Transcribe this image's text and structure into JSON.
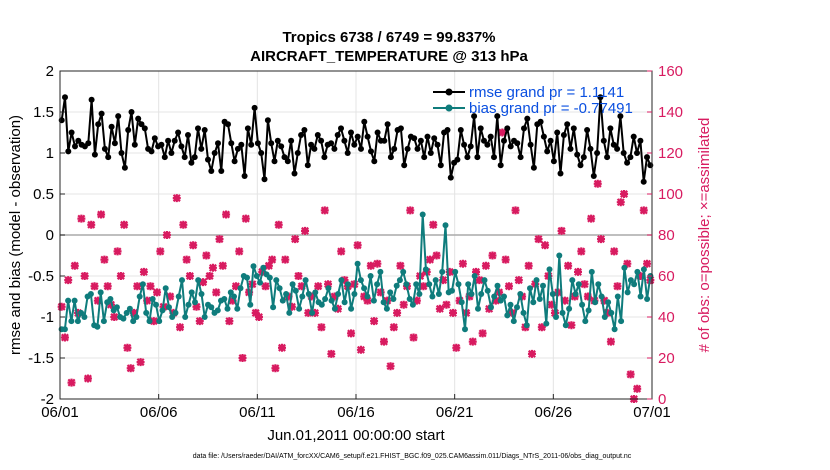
{
  "chart_data": {
    "type": "line",
    "title": "Tropics 6738 / 6749 = 99.837%",
    "subtitle": "AIRCRAFT_TEMPERATURE @ 313 hPa",
    "xlabel": "Jun.01,2011 00:00:00 start",
    "ylabel_left": "rmse and bias (model - observation)",
    "ylabel_right": "# of obs: o=possible; ×=assimilated",
    "footnote": "data file: /Users/raeder/DAI/ATM_forcXX/CAM6_setup/f.e21.FHIST_BGC.f09_025.CAM6assim.011/Diags_NTrS_2011-06/obs_diag_output.nc",
    "x_tick_labels": [
      "06/01",
      "06/06",
      "06/11",
      "06/16",
      "06/21",
      "06/26",
      "07/01"
    ],
    "x_range_days": [
      0,
      30
    ],
    "ylim_left": [
      -2,
      2
    ],
    "yticks_left": [
      "-2",
      "-1.5",
      "-1",
      "-0.5",
      "0",
      "0.5",
      "1",
      "1.5",
      "2"
    ],
    "ylim_right": [
      0,
      160
    ],
    "yticks_right": [
      "0",
      "20",
      "40",
      "60",
      "80",
      "100",
      "120",
      "140",
      "160"
    ],
    "grid": true,
    "legend_position": "top-right",
    "colors": {
      "rmse": "#000000",
      "bias": "#0f7c7c",
      "obs": "#d81b60",
      "zero_line": "#aaaaaa",
      "legend_text": "#0a4fe0",
      "right_axis": "#d81b60"
    },
    "series": [
      {
        "name": "rmse grand pr = 1.1141",
        "axis": "left",
        "values": [
          1.4,
          1.68,
          1.02,
          1.25,
          1.08,
          1.15,
          1.1,
          1.08,
          1.12,
          1.65,
          0.98,
          1.35,
          1.48,
          1.05,
          0.95,
          1.32,
          1.12,
          1.45,
          1.0,
          0.82,
          1.28,
          1.5,
          1.1,
          1.42,
          1.35,
          1.3,
          1.05,
          1.02,
          1.18,
          1.08,
          1.1,
          0.95,
          1.15,
          1.0,
          1.15,
          1.25,
          1.08,
          0.95,
          1.22,
          0.88,
          0.95,
          1.3,
          1.05,
          1.28,
          0.92,
          0.78,
          1.0,
          1.12,
          0.78,
          1.38,
          1.35,
          1.12,
          0.9,
          1.05,
          1.1,
          0.72,
          1.3,
          1.1,
          1.55,
          1.12,
          1.0,
          0.68,
          1.4,
          1.12,
          0.9,
          1.15,
          1.08,
          0.95,
          0.9,
          1.15,
          0.75,
          1.0,
          1.22,
          1.28,
          0.85,
          1.1,
          1.05,
          1.22,
          1.15,
          0.95,
          1.1,
          1.12,
          1.05,
          1.22,
          1.3,
          1.15,
          1.0,
          1.25,
          1.1,
          1.2,
          1.05,
          1.38,
          1.2,
          1.02,
          0.9,
          1.25,
          1.15,
          1.15,
          1.35,
          0.95,
          1.05,
          1.28,
          1.3,
          0.85,
          1.05,
          1.2,
          1.18,
          1.05,
          1.15,
          0.95,
          1.2,
          1.0,
          1.18,
          1.1,
          0.85,
          1.25,
          1.28,
          0.7,
          0.88,
          0.92,
          1.28,
          1.1,
          0.95,
          1.08,
          1.45,
          0.95,
          1.3,
          1.15,
          1.1,
          1.2,
          0.95,
          1.45,
          0.85,
          1.15,
          1.3,
          1.08,
          1.15,
          1.12,
          0.95,
          1.3,
          1.42,
          1.1,
          0.82,
          1.35,
          1.38,
          1.2,
          1.02,
          1.15,
          0.9,
          1.25,
          0.75,
          1.22,
          1.35,
          1.05,
          1.3,
          0.98,
          0.85,
          0.95,
          1.28,
          1.05,
          0.72,
          1.0,
          1.68,
          1.15,
          0.95,
          1.3,
          1.1,
          1.05,
          1.45,
          1.0,
          0.88,
          0.95,
          1.2,
          1.0,
          1.15,
          0.65,
          0.95,
          0.85
        ]
      },
      {
        "name": "bias grand pr = -0.77491",
        "axis": "left",
        "values": [
          -1.15,
          -1.15,
          -0.8,
          -1.05,
          -0.8,
          -1.05,
          -0.95,
          -1.0,
          -0.75,
          -0.72,
          -1.1,
          -1.12,
          -0.7,
          -1.05,
          -0.82,
          -0.78,
          -0.92,
          -0.88,
          -1.0,
          -1.02,
          -0.95,
          -0.9,
          -1.05,
          -1.0,
          -0.75,
          -0.6,
          -0.95,
          -1.05,
          -0.78,
          -0.85,
          -1.05,
          -0.92,
          -0.65,
          -0.88,
          -1.0,
          -0.95,
          -0.75,
          -0.55,
          -1.0,
          -0.85,
          -0.7,
          -0.82,
          -0.55,
          -0.72,
          -1.0,
          -0.85,
          -0.88,
          -0.95,
          -0.92,
          -0.8,
          -0.78,
          -0.9,
          -0.7,
          -0.75,
          -0.9,
          -0.65,
          -0.5,
          -0.52,
          -0.85,
          -0.38,
          -0.5,
          -0.58,
          -0.4,
          -0.48,
          -0.52,
          -0.88,
          -0.55,
          -0.65,
          -0.8,
          -0.72,
          -0.95,
          -0.6,
          -0.68,
          -0.9,
          -0.75,
          -0.55,
          -0.72,
          -0.95,
          -0.7,
          -0.82,
          -0.85,
          -0.78,
          -0.65,
          -0.8,
          -0.9,
          -0.72,
          -0.55,
          -0.82,
          -0.6,
          -0.9,
          -0.72,
          -0.35,
          -0.55,
          -0.65,
          -0.75,
          -0.5,
          -0.8,
          -0.6,
          -0.45,
          -0.82,
          -0.9,
          -0.7,
          -0.78,
          -0.62,
          -0.55,
          -0.45,
          -0.6,
          -0.78,
          -0.85,
          -0.6,
          -0.72,
          0.25,
          -0.42,
          -0.6,
          -0.75,
          -0.55,
          -0.72,
          -0.45,
          0.12,
          -0.7,
          -0.68,
          -0.45,
          -0.6,
          -0.82,
          -1.15,
          -0.6,
          -0.72,
          -0.5,
          -0.9,
          -0.72,
          -0.55,
          -0.68,
          -0.88,
          -0.75,
          -0.62,
          -0.8,
          -0.75,
          -0.98,
          -0.85,
          -1.05,
          -0.88,
          -0.72,
          -0.95,
          -1.1,
          -0.65,
          -0.82,
          -0.55,
          -0.78,
          -0.62,
          -1.08,
          -0.42,
          -0.72,
          -1.0,
          -0.25,
          -0.95,
          -1.1,
          -0.9,
          -0.55,
          -0.72,
          -0.6,
          -0.85,
          -1.05,
          -0.92,
          -0.45,
          -0.82,
          -0.6,
          -0.75,
          -1.0,
          -0.82,
          -0.95,
          -1.15,
          -0.75,
          -1.05,
          -0.4,
          -0.7,
          -0.55,
          -0.6,
          -0.45,
          -0.75,
          -0.42,
          -0.78,
          -0.5
        ]
      }
    ],
    "obs_counts": [
      45,
      30,
      58,
      8,
      65,
      42,
      88,
      60,
      10,
      85,
      55,
      48,
      90,
      68,
      55,
      46,
      40,
      72,
      60,
      85,
      25,
      15,
      42,
      55,
      18,
      62,
      48,
      55,
      38,
      52,
      72,
      45,
      80,
      50,
      42,
      98,
      35,
      85,
      68,
      60,
      75,
      45,
      38,
      57,
      70,
      60,
      64,
      52,
      78,
      65,
      90,
      38,
      48,
      55,
      72,
      20,
      88,
      52,
      56,
      42,
      40,
      62,
      55,
      65,
      68,
      15,
      85,
      25,
      68,
      50,
      45,
      78,
      60,
      55,
      82,
      42,
      50,
      42,
      55,
      35,
      92,
      56,
      22,
      50,
      44,
      72,
      58,
      55,
      32,
      56,
      75,
      24,
      50,
      48,
      65,
      38,
      66,
      52,
      28,
      48,
      16,
      35,
      42,
      65,
      46,
      55,
      92,
      30,
      48,
      60,
      55,
      62,
      68,
      85,
      70,
      44,
      58,
      46,
      62,
      42,
      25,
      48,
      66,
      42,
      50,
      28,
      62,
      58,
      32,
      65,
      44,
      70,
      48,
      52,
      130,
      68,
      55,
      42,
      92,
      58,
      50,
      35,
      65,
      22,
      56,
      78,
      35,
      75,
      60,
      46,
      42,
      52,
      82,
      48,
      65,
      36,
      50,
      62,
      72,
      56,
      50,
      88,
      48,
      105,
      78,
      48,
      42,
      28,
      72,
      55,
      96,
      100,
      66,
      12,
      0,
      5,
      60,
      92,
      66,
      58
    ]
  },
  "legend": {
    "rmse_label": "rmse grand pr = 1.1141",
    "bias_label": "bias grand pr = -0.77491"
  }
}
